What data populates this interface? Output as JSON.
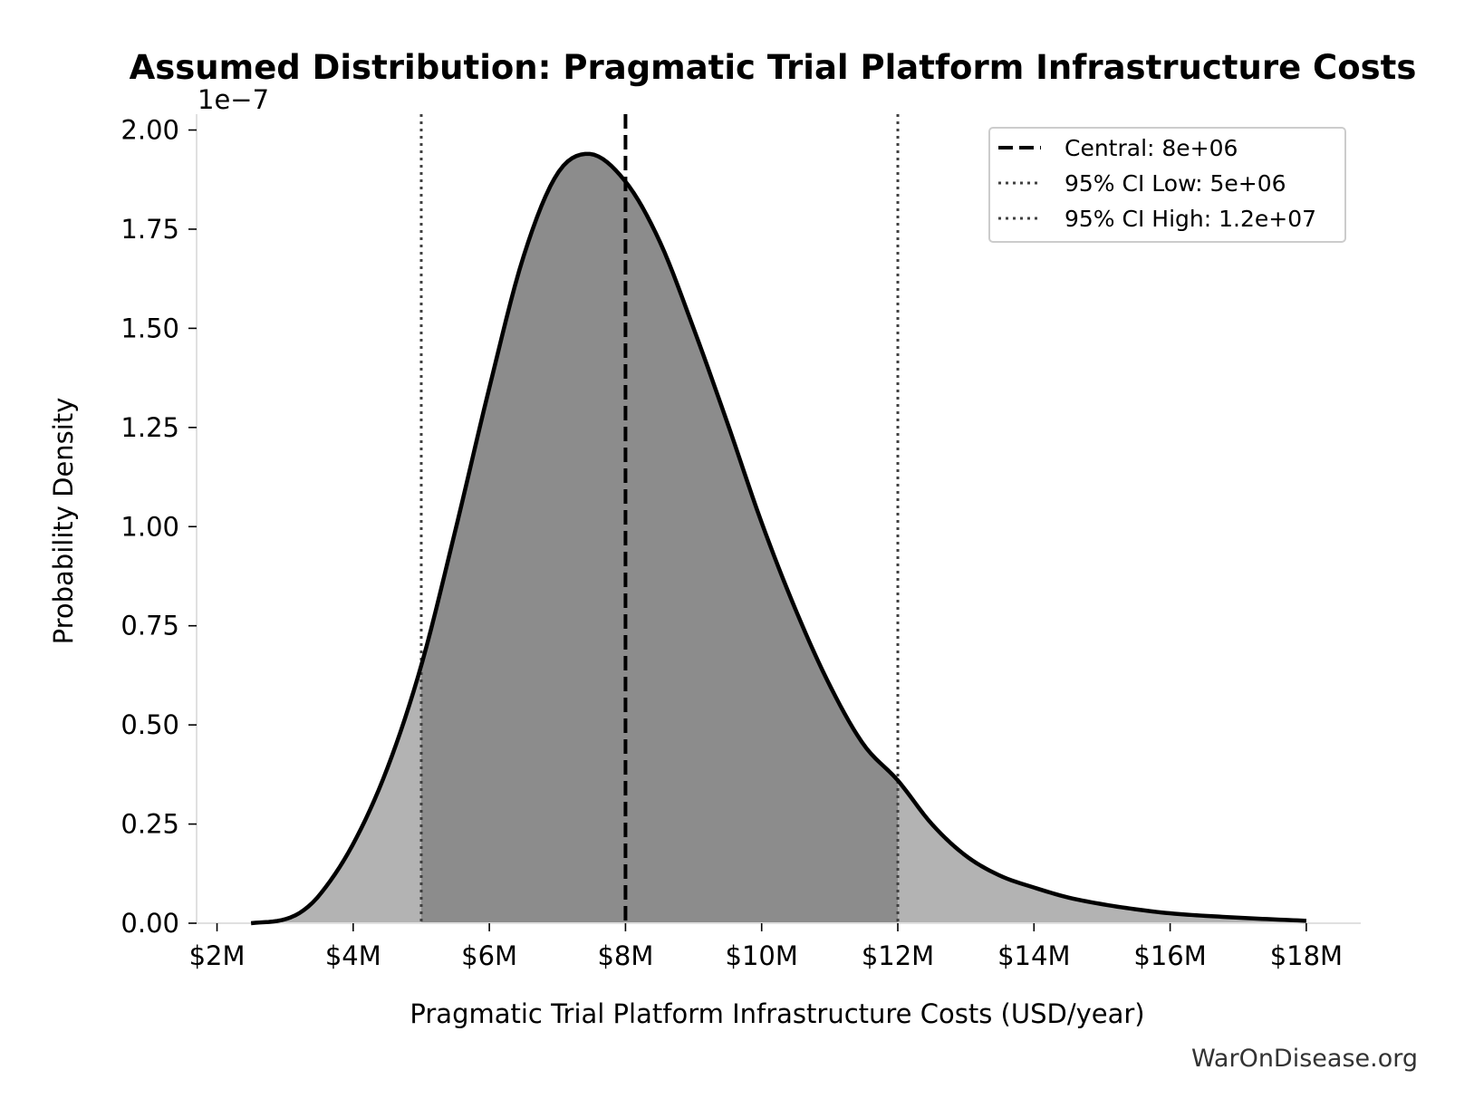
{
  "chart_data": {
    "type": "area",
    "title": "Assumed Distribution: Pragmatic Trial Platform Infrastructure Costs",
    "xlabel": "Pragmatic Trial Platform Infrastructure Costs (USD/year)",
    "ylabel": "Probability Density",
    "y_offset_label": "1e−7",
    "y_multiplier": 1e-07,
    "xlim": [
      1700000,
      18800000
    ],
    "ylim": [
      0,
      2.04
    ],
    "x_ticks": [
      {
        "value": 2000000,
        "label": "$2M"
      },
      {
        "value": 4000000,
        "label": "$4M"
      },
      {
        "value": 6000000,
        "label": "$6M"
      },
      {
        "value": 8000000,
        "label": "$8M"
      },
      {
        "value": 10000000,
        "label": "$10M"
      },
      {
        "value": 12000000,
        "label": "$12M"
      },
      {
        "value": 14000000,
        "label": "$14M"
      },
      {
        "value": 16000000,
        "label": "$16M"
      },
      {
        "value": 18000000,
        "label": "$18M"
      }
    ],
    "y_ticks": [
      {
        "value": 0,
        "label": "0.00"
      },
      {
        "value": 0.25,
        "label": "0.25"
      },
      {
        "value": 0.5,
        "label": "0.50"
      },
      {
        "value": 0.75,
        "label": "0.75"
      },
      {
        "value": 1.0,
        "label": "1.00"
      },
      {
        "value": 1.25,
        "label": "1.25"
      },
      {
        "value": 1.5,
        "label": "1.50"
      },
      {
        "value": 1.75,
        "label": "1.75"
      },
      {
        "value": 2.0,
        "label": "2.00"
      }
    ],
    "x": [
      2500000,
      3000000,
      3250000,
      3500000,
      4000000,
      4500000,
      5000000,
      5500000,
      6000000,
      6500000,
      7000000,
      7450000,
      8000000,
      8500000,
      9000000,
      9500000,
      10000000,
      10500000,
      11000000,
      11500000,
      12000000,
      12500000,
      13000000,
      13500000,
      14000000,
      14500000,
      15000000,
      15500000,
      16000000,
      17000000,
      18000000
    ],
    "density": [
      0.0,
      0.01,
      0.03,
      0.07,
      0.2,
      0.39,
      0.65,
      0.99,
      1.35,
      1.68,
      1.89,
      1.94,
      1.87,
      1.72,
      1.5,
      1.26,
      1.01,
      0.79,
      0.6,
      0.45,
      0.36,
      0.25,
      0.17,
      0.12,
      0.09,
      0.065,
      0.048,
      0.035,
      0.025,
      0.014,
      0.006
    ],
    "ci_shading": {
      "low": 5000000,
      "high": 12000000,
      "inner_color": "#8c8c8c",
      "outer_color": "#b3b3b3"
    },
    "reference_lines": [
      {
        "value": 8000000,
        "style": "dashed",
        "color": "#000000",
        "label": "Central: 8e+06"
      },
      {
        "value": 5000000,
        "style": "dotted",
        "color": "#404040",
        "label": "95% CI Low: 5e+06"
      },
      {
        "value": 12000000,
        "style": "dotted",
        "color": "#404040",
        "label": "95% CI High: 1.2e+07"
      }
    ],
    "legend_position": "top-right",
    "grid": false
  },
  "watermark": "WarOnDisease.org"
}
